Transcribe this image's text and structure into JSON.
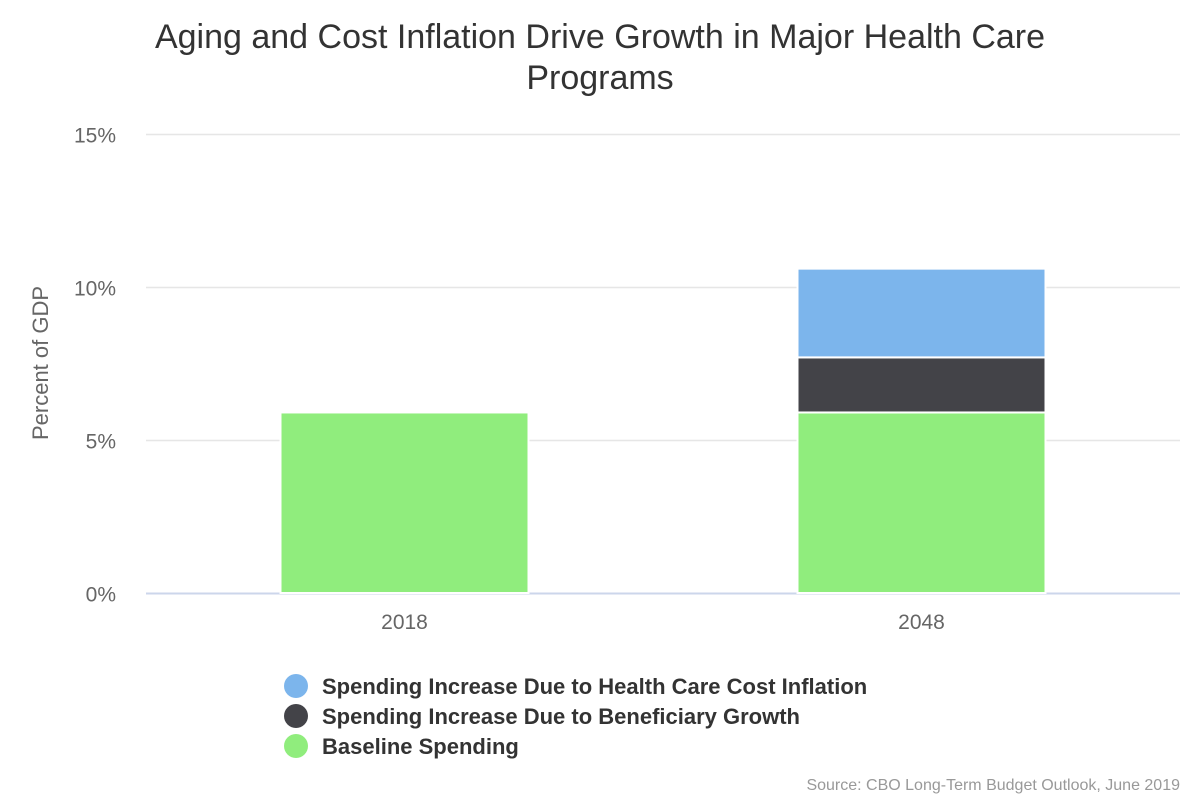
{
  "chart_data": {
    "type": "bar",
    "stacked": true,
    "title_lines": [
      "Aging and Cost Inflation Drive Growth in Major Health Care",
      "Programs"
    ],
    "xlabel": "",
    "ylabel": "Percent of GDP",
    "ylim": [
      0,
      15
    ],
    "yticks": [
      0,
      5,
      10,
      15
    ],
    "ytick_labels": [
      "0%",
      "5%",
      "10%",
      "15%"
    ],
    "categories": [
      "2018",
      "2048"
    ],
    "series": [
      {
        "name": "Baseline Spending",
        "color": "#90ed7d",
        "values": [
          5.9,
          5.9
        ]
      },
      {
        "name": "Spending Increase Due to Beneficiary Growth",
        "color": "#434348",
        "values": [
          0,
          1.8
        ]
      },
      {
        "name": "Spending Increase Due to Health Care Cost Inflation",
        "color": "#7cb5ec",
        "values": [
          0,
          2.9
        ]
      }
    ],
    "legend_order": [
      2,
      1,
      0
    ],
    "legend_position": "bottom",
    "grid": true,
    "source": "Source: CBO Long-Term Budget Outlook, June 2019"
  }
}
